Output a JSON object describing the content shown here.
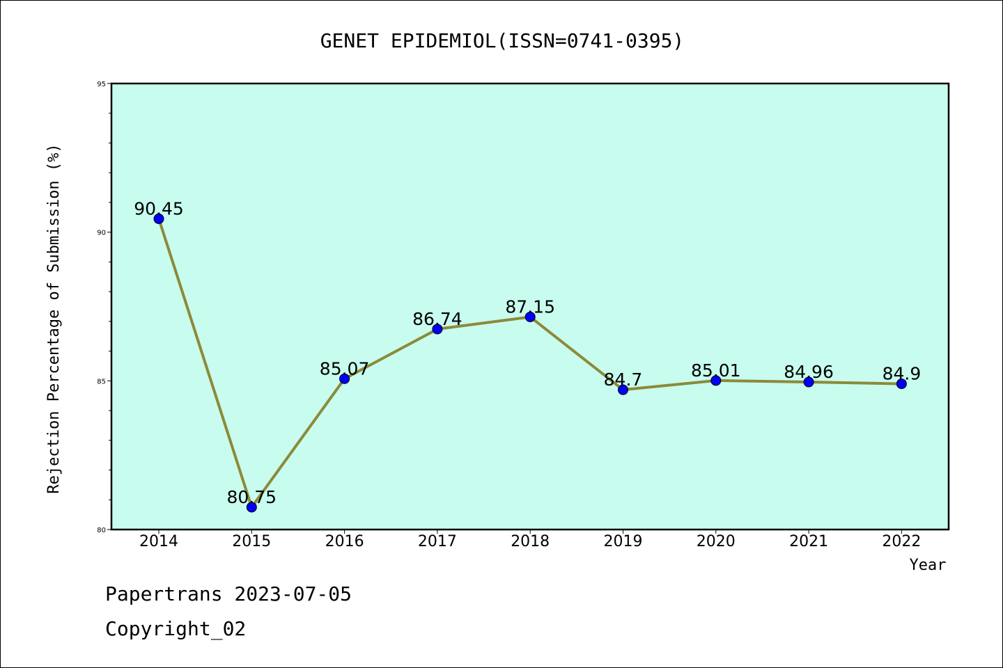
{
  "footer": {
    "line1": "Papertrans 2023-07-05",
    "line2": "Copyright_02"
  },
  "chart_data": {
    "type": "line",
    "title": "GENET EPIDEMIOL(ISSN=0741-0395)",
    "xlabel": "Year",
    "ylabel": "Rejection Percentage of Submission (%)",
    "categories": [
      "2014",
      "2015",
      "2016",
      "2017",
      "2018",
      "2019",
      "2020",
      "2021",
      "2022"
    ],
    "values": [
      90.45,
      80.75,
      85.07,
      86.74,
      87.15,
      84.7,
      85.01,
      84.96,
      84.9
    ],
    "data_labels": [
      "90.45",
      "80.75",
      "85.07",
      "86.74",
      "87.15",
      "84.7",
      "85.01",
      "84.96",
      "84.9"
    ],
    "ylim": [
      80,
      95
    ],
    "y_major_ticks": [
      80,
      85,
      90,
      95
    ],
    "y_minor_step": 1,
    "grid": false,
    "colors": {
      "plot_background": "#c8fcee",
      "line": "#8c8a3a",
      "marker": "#0000ff"
    }
  }
}
